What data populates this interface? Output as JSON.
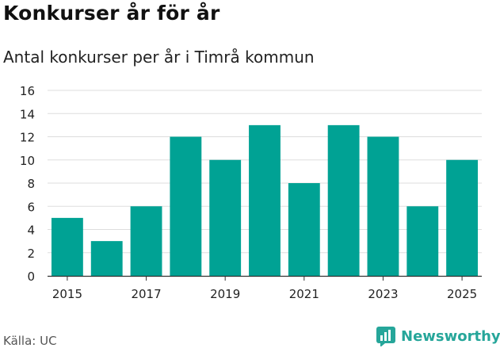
{
  "title": "Konkurser år för år",
  "subtitle": "Antal konkurser per år i Timrå kommun",
  "source": "Källa: UC",
  "brand": "Newsworthy",
  "colors": {
    "bar": "#00a294",
    "brand": "#26a69a",
    "grid": "#dddddd",
    "axis": "#333333"
  },
  "chart_data": {
    "type": "bar",
    "title": "Konkurser år för år",
    "subtitle": "Antal konkurser per år i Timrå kommun",
    "categories": [
      2015,
      2016,
      2017,
      2018,
      2019,
      2020,
      2021,
      2022,
      2023,
      2024,
      2025
    ],
    "values": [
      5,
      3,
      6,
      12,
      10,
      13,
      8,
      13,
      12,
      6,
      10
    ],
    "x_tick_labels": [
      "2015",
      "2017",
      "2019",
      "2021",
      "2023",
      "2025"
    ],
    "y_ticks": [
      0,
      2,
      4,
      6,
      8,
      10,
      12,
      14,
      16
    ],
    "ylim": [
      0,
      16
    ],
    "xlabel": "",
    "ylabel": "",
    "grid": true,
    "legend": "none"
  }
}
